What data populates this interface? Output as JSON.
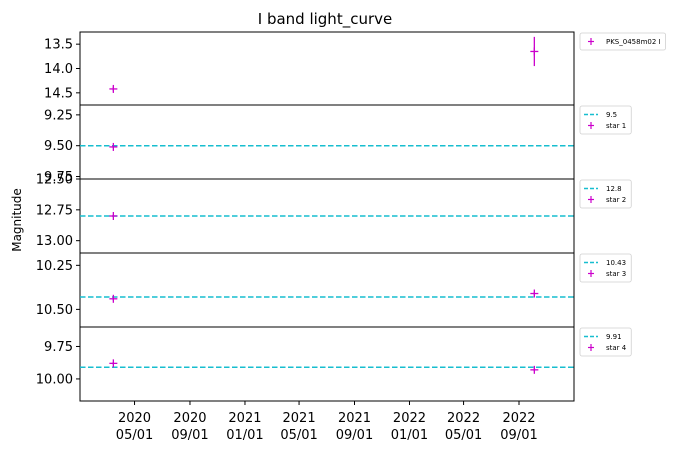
{
  "chart_data": {
    "type": "scatter",
    "title": "I band light_curve",
    "ylabel": "Magnitude",
    "x_date_range": [
      "2020-01-01",
      "2023-01-01"
    ],
    "x_ticks": [
      {
        "date": "2020-05-01",
        "line1": "2020",
        "line2": "05/01"
      },
      {
        "date": "2020-09-01",
        "line1": "2020",
        "line2": "09/01"
      },
      {
        "date": "2021-01-01",
        "line1": "2021",
        "line2": "01/01"
      },
      {
        "date": "2021-05-01",
        "line1": "2021",
        "line2": "05/01"
      },
      {
        "date": "2021-09-01",
        "line1": "2021",
        "line2": "09/01"
      },
      {
        "date": "2022-01-01",
        "line1": "2022",
        "line2": "01/01"
      },
      {
        "date": "2022-05-01",
        "line1": "2022",
        "line2": "05/01"
      },
      {
        "date": "2022-09-01",
        "line1": "2022",
        "line2": "09/01"
      }
    ],
    "marker_color": "#cc00cc",
    "ref_line_color": "#17becf",
    "y_inverted": true,
    "panels": [
      {
        "series_name": "PKS_0458m02 I",
        "ylim": [
          14.75,
          13.25
        ],
        "y_ticks": [
          {
            "value": 13.5,
            "label": "13.5"
          },
          {
            "value": 14.0,
            "label": "14.0"
          },
          {
            "value": 14.5,
            "label": "14.5"
          }
        ],
        "points": [
          {
            "date": "2020-03-15",
            "y": 14.42,
            "yerr": 0.05
          },
          {
            "date": "2022-10-05",
            "y": 13.65,
            "yerr": 0.3
          }
        ]
      },
      {
        "series_name": "star 1",
        "ref_label": "9.5",
        "ref_value": 9.5,
        "ylim": [
          9.77,
          9.17
        ],
        "y_ticks": [
          {
            "value": 9.25,
            "label": "9.25"
          },
          {
            "value": 9.5,
            "label": "9.50"
          },
          {
            "value": 9.75,
            "label": "9.75"
          }
        ],
        "points": [
          {
            "date": "2020-03-15",
            "y": 9.51,
            "yerr": 0.01
          }
        ]
      },
      {
        "series_name": "star 2",
        "ref_label": "12.8",
        "ref_value": 12.8,
        "ylim": [
          13.1,
          12.5
        ],
        "y_ticks": [
          {
            "value": 12.5,
            "label": "12.50"
          },
          {
            "value": 12.75,
            "label": "12.75"
          },
          {
            "value": 13.0,
            "label": "13.00"
          }
        ],
        "points": [
          {
            "date": "2020-03-15",
            "y": 12.8,
            "yerr": 0.01
          }
        ]
      },
      {
        "series_name": "star 3",
        "ref_label": "10.43",
        "ref_value": 10.43,
        "ylim": [
          10.6,
          10.18
        ],
        "y_ticks": [
          {
            "value": 10.25,
            "label": "10.25"
          },
          {
            "value": 10.5,
            "label": "10.50"
          }
        ],
        "points": [
          {
            "date": "2020-03-15",
            "y": 10.44,
            "yerr": 0.01
          },
          {
            "date": "2022-10-05",
            "y": 10.41,
            "yerr": 0.01
          }
        ]
      },
      {
        "series_name": "star 4",
        "ref_label": "9.91",
        "ref_value": 9.91,
        "ylim": [
          10.17,
          9.6
        ],
        "y_ticks": [
          {
            "value": 9.75,
            "label": "9.75"
          },
          {
            "value": 10.0,
            "label": "10.00"
          }
        ],
        "points": [
          {
            "date": "2020-03-15",
            "y": 9.88,
            "yerr": 0.01
          },
          {
            "date": "2022-10-05",
            "y": 9.93,
            "yerr": 0.01
          }
        ]
      }
    ]
  }
}
